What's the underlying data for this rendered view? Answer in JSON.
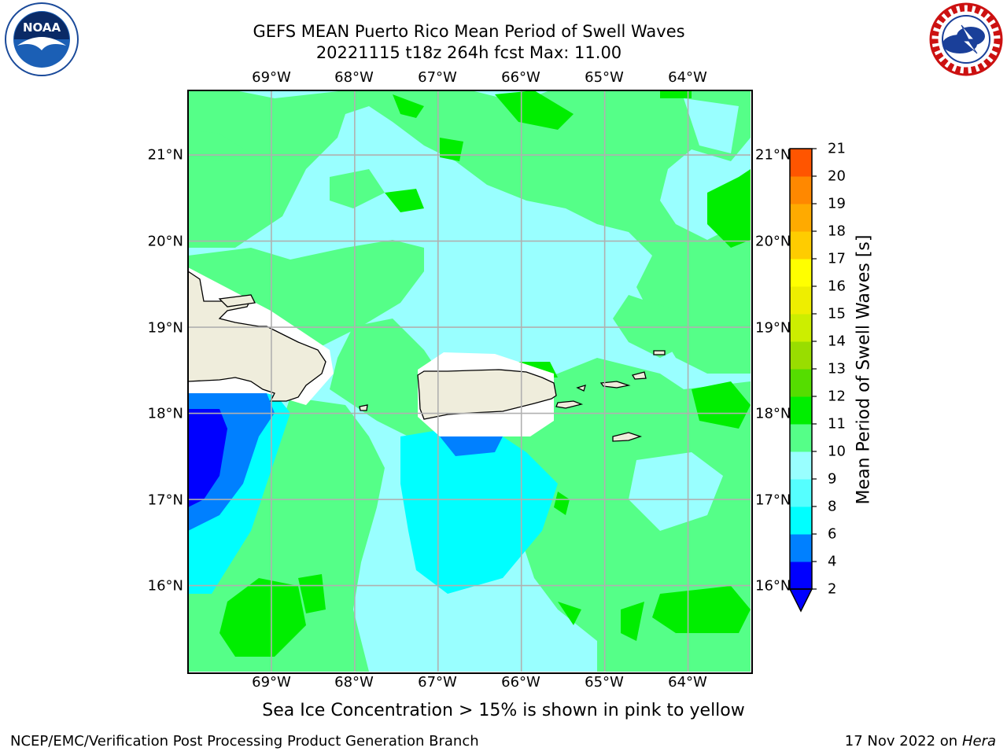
{
  "title": {
    "line1": "GEFS MEAN Puerto Rico Mean Period of Swell Waves",
    "line2": "20221115 t18z 264h fcst   Max: 11.00"
  },
  "map": {
    "longitude_labels": [
      "69°W",
      "68°W",
      "67°W",
      "66°W",
      "65°W",
      "64°W"
    ],
    "latitude_labels": [
      "21°N",
      "20°N",
      "19°N",
      "18°N",
      "17°N",
      "16°N"
    ],
    "lon_range": [
      -70.0,
      -63.25
    ],
    "lat_range": [
      15.0,
      21.75
    ],
    "grid": true,
    "fill_colors": {
      "c2_4": "#0000ff",
      "c4_6": "#0080ff",
      "c6_8": "#00ffff",
      "c8_9": "#99ffff",
      "c9_10": "#55ff88",
      "c10_11": "#00ee00",
      "land": "#efeddc",
      "no_data": "#ffffff"
    }
  },
  "colorbar": {
    "label": "Mean Period of Swell Waves [s]",
    "ticks": [
      "2",
      "4",
      "6",
      "8",
      "9",
      "10",
      "11",
      "12",
      "13",
      "14",
      "15",
      "16",
      "17",
      "18",
      "19",
      "20",
      "21"
    ],
    "colors": [
      "#0000ff",
      "#0080ff",
      "#00ffff",
      "#55ffff",
      "#99ffff",
      "#55ff88",
      "#00ee00",
      "#55dd00",
      "#99dd00",
      "#ccee00",
      "#eeee00",
      "#ffff00",
      "#ffcc00",
      "#ffaa00",
      "#ff8800",
      "#ff5500",
      "#ff0000"
    ],
    "extend": "min"
  },
  "note": "Sea Ice Concentration > 15% is shown in pink to yellow",
  "footer": {
    "left": "NCEP/EMC/Verification Post Processing Product Generation Branch",
    "right_date": "17 Nov 2022 on",
    "right_host": "Hera"
  },
  "logos": {
    "left": "noaa-logo",
    "right": "nws-logo"
  }
}
